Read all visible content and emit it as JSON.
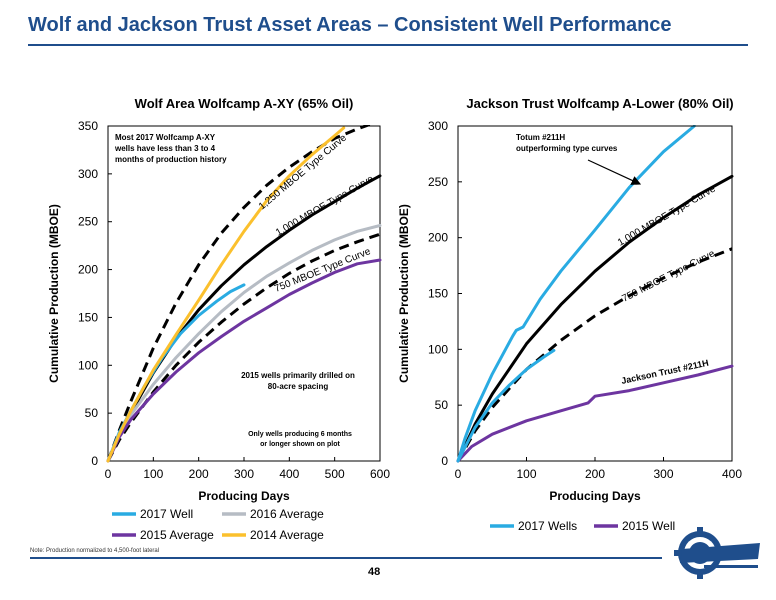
{
  "header": {
    "title": "Wolf and Jackson Trust Asset Areas – Consistent Well Performance"
  },
  "footer": {
    "note": "Note: Production normalized to 4,500-foot lateral",
    "page": "48"
  },
  "colors": {
    "accent": "#1f4e8c",
    "series_2017": "#29abe2",
    "series_2016": "#b6bcc4",
    "series_2015": "#6d35a0",
    "series_2014": "#fbc02d",
    "type_curve": "#000000"
  },
  "chart_data": [
    {
      "type": "line",
      "title": "Wolf Area Wolfcamp A-XY (65% Oil)",
      "xlabel": "Producing Days",
      "ylabel": "Cumulative Production (MBOE)",
      "xlim": [
        0,
        600
      ],
      "ylim": [
        0,
        350
      ],
      "xticks": [
        "0",
        "100",
        "200",
        "300",
        "400",
        "500",
        "600"
      ],
      "yticks": [
        "0",
        "50",
        "100",
        "150",
        "200",
        "250",
        "300",
        "350"
      ],
      "grid": false,
      "legend_position": "bottom",
      "series": [
        {
          "name": "2017 Well",
          "color": "#29abe2",
          "style": "solid",
          "in_legend": true,
          "points": [
            [
              0,
              0
            ],
            [
              10,
              12
            ],
            [
              25,
              30
            ],
            [
              50,
              52
            ],
            [
              80,
              78
            ],
            [
              120,
              108
            ],
            [
              160,
              133
            ],
            [
              200,
              152
            ],
            [
              240,
              167
            ],
            [
              270,
              177
            ],
            [
              300,
              184
            ]
          ]
        },
        {
          "name": "2016 Average",
          "color": "#b6bcc4",
          "style": "solid",
          "in_legend": true,
          "points": [
            [
              0,
              0
            ],
            [
              25,
              28
            ],
            [
              50,
              48
            ],
            [
              100,
              80
            ],
            [
              150,
              108
            ],
            [
              200,
              133
            ],
            [
              250,
              156
            ],
            [
              300,
              176
            ],
            [
              350,
              193
            ],
            [
              400,
              207
            ],
            [
              450,
              220
            ],
            [
              500,
              231
            ],
            [
              550,
              240
            ],
            [
              600,
              246
            ]
          ]
        },
        {
          "name": "2015 Average",
          "color": "#6d35a0",
          "style": "solid",
          "in_legend": true,
          "points": [
            [
              0,
              0
            ],
            [
              25,
              25
            ],
            [
              50,
              43
            ],
            [
              100,
              70
            ],
            [
              150,
              93
            ],
            [
              200,
              113
            ],
            [
              250,
              130
            ],
            [
              300,
              146
            ],
            [
              350,
              160
            ],
            [
              400,
              174
            ],
            [
              450,
              186
            ],
            [
              500,
              197
            ],
            [
              550,
              206
            ],
            [
              600,
              210
            ]
          ]
        },
        {
          "name": "2014 Average",
          "color": "#fbc02d",
          "style": "solid",
          "in_legend": true,
          "points": [
            [
              0,
              0
            ],
            [
              25,
              28
            ],
            [
              50,
              52
            ],
            [
              100,
              95
            ],
            [
              150,
              132
            ],
            [
              200,
              168
            ],
            [
              250,
              205
            ],
            [
              300,
              240
            ],
            [
              350,
              272
            ],
            [
              400,
              298
            ],
            [
              450,
              320
            ],
            [
              500,
              340
            ],
            [
              520,
              348
            ]
          ]
        },
        {
          "name": "1,250 MBOE Type Curve",
          "color": "#000000",
          "style": "dashed",
          "in_legend": false,
          "points": [
            [
              0,
              0
            ],
            [
              25,
              32
            ],
            [
              50,
              62
            ],
            [
              100,
              118
            ],
            [
              150,
              165
            ],
            [
              200,
              205
            ],
            [
              250,
              238
            ],
            [
              300,
              265
            ],
            [
              350,
              288
            ],
            [
              400,
              307
            ],
            [
              450,
              323
            ],
            [
              500,
              337
            ],
            [
              550,
              347
            ],
            [
              580,
              352
            ]
          ]
        },
        {
          "name": "1,000 MBOE Type Curve",
          "color": "#000000",
          "style": "solid",
          "in_legend": false,
          "points": [
            [
              0,
              0
            ],
            [
              25,
              26
            ],
            [
              50,
              50
            ],
            [
              100,
              92
            ],
            [
              150,
              128
            ],
            [
              200,
              158
            ],
            [
              250,
              183
            ],
            [
              300,
              205
            ],
            [
              350,
              224
            ],
            [
              400,
              241
            ],
            [
              450,
              257
            ],
            [
              500,
              271
            ],
            [
              550,
              285
            ],
            [
              600,
              298
            ]
          ]
        },
        {
          "name": "750 MBOE Type Curve",
          "color": "#000000",
          "style": "dashed",
          "in_legend": false,
          "points": [
            [
              0,
              0
            ],
            [
              25,
              22
            ],
            [
              50,
              40
            ],
            [
              100,
              72
            ],
            [
              150,
              100
            ],
            [
              200,
              124
            ],
            [
              250,
              145
            ],
            [
              300,
              164
            ],
            [
              350,
              181
            ],
            [
              400,
              196
            ],
            [
              450,
              209
            ],
            [
              500,
              220
            ],
            [
              550,
              229
            ],
            [
              600,
              237
            ]
          ]
        }
      ],
      "annotations": [
        "Most 2017 Wolfcamp A-XY",
        "wells have less than 3 to 4",
        "months of production history",
        "1,250 MBOE Type Curve",
        "1,000 MBOE Type Curve",
        "750 MBOE Type Curve",
        "2015 wells primarily drilled on",
        "80-acre spacing",
        "Only wells producing 6 months",
        "or longer shown on plot"
      ]
    },
    {
      "type": "line",
      "title": "Jackson Trust Wolfcamp A-Lower (80% Oil)",
      "xlabel": "Producing Days",
      "ylabel": "Cumulative Production (MBOE)",
      "xlim": [
        0,
        400
      ],
      "ylim": [
        0,
        300
      ],
      "xticks": [
        "0",
        "100",
        "200",
        "300",
        "400"
      ],
      "yticks": [
        "0",
        "50",
        "100",
        "150",
        "200",
        "250",
        "300"
      ],
      "grid": false,
      "legend_position": "bottom",
      "series": [
        {
          "name": "2017 Wells",
          "color": "#29abe2",
          "style": "solid",
          "in_legend": true,
          "points": [
            [
              0,
              0
            ],
            [
              10,
              20
            ],
            [
              25,
              45
            ],
            [
              50,
              78
            ],
            [
              80,
              112
            ],
            [
              85,
              117
            ],
            [
              95,
              120
            ],
            [
              120,
              145
            ],
            [
              150,
              170
            ],
            [
              200,
              207
            ],
            [
              250,
              245
            ],
            [
              300,
              277
            ],
            [
              345,
              300
            ]
          ]
        },
        {
          "name": "2015 Well",
          "color": "#6d35a0",
          "style": "solid",
          "in_legend": true,
          "points": [
            [
              0,
              0
            ],
            [
              20,
              13
            ],
            [
              50,
              24
            ],
            [
              100,
              36
            ],
            [
              150,
              45
            ],
            [
              190,
              52
            ],
            [
              200,
              58
            ],
            [
              250,
              63
            ],
            [
              300,
              70
            ],
            [
              350,
              77
            ],
            [
              400,
              85
            ]
          ]
        },
        {
          "name": "Jackson Trust #211H",
          "color": "#29abe2",
          "style": "solid",
          "in_legend": false,
          "points": [
            [
              0,
              0
            ],
            [
              25,
              30
            ],
            [
              50,
              52
            ],
            [
              75,
              68
            ],
            [
              100,
              82
            ],
            [
              125,
              93
            ],
            [
              140,
              99
            ]
          ]
        },
        {
          "name": "1,000 MBOE Type Curve",
          "color": "#000000",
          "style": "solid",
          "in_legend": false,
          "points": [
            [
              0,
              0
            ],
            [
              25,
              33
            ],
            [
              50,
              60
            ],
            [
              100,
              105
            ],
            [
              150,
              140
            ],
            [
              200,
              170
            ],
            [
              250,
              196
            ],
            [
              300,
              218
            ],
            [
              350,
              238
            ],
            [
              400,
              255
            ]
          ]
        },
        {
          "name": "750 MBOE Type Curve",
          "color": "#000000",
          "style": "dashed",
          "in_legend": false,
          "points": [
            [
              0,
              0
            ],
            [
              25,
              27
            ],
            [
              50,
              48
            ],
            [
              100,
              82
            ],
            [
              150,
              108
            ],
            [
              200,
              130
            ],
            [
              250,
              148
            ],
            [
              300,
              164
            ],
            [
              350,
              178
            ],
            [
              400,
              190
            ]
          ]
        }
      ],
      "annotations": [
        "Totum #211H",
        "outperforming type curves",
        "1,000 MBOE Type Curve",
        "750 MBOE Type Curve",
        "Jackson Trust #211H"
      ]
    }
  ]
}
